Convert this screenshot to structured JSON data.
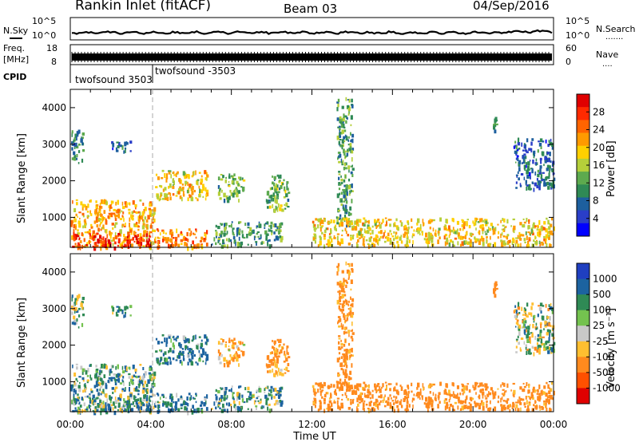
{
  "header": {
    "title": "Rankin Inlet (fitACF)",
    "beam": "Beam 03",
    "date": "04/Sep/2016"
  },
  "top_panels": {
    "nsky_label": "N.Sky",
    "nsearch_label": "N.Search",
    "noise_ticks": [
      "10^5",
      "10^0"
    ],
    "freq_label_1": "Freq.",
    "freq_label_2": "[MHz]",
    "freq_ticks": [
      "18",
      "8"
    ],
    "nave_label": "Nave",
    "nave_ticks": [
      "60",
      "0"
    ],
    "cpid_label": "CPID",
    "cpid_segments": [
      {
        "name": "twofsound 3503",
        "start_hour": 0
      },
      {
        "name": "twofsound -3503",
        "start_hour": 4
      }
    ]
  },
  "panels": {
    "power": {
      "ylabel": "Slant Range [km]",
      "cbar_label": "Power [dB]",
      "cbar_ticks": [
        "28",
        "24",
        "20",
        "16",
        "12",
        "8",
        "4"
      ],
      "cbar_colors": [
        "#e00000",
        "#ff2a00",
        "#ff6400",
        "#ff9a00",
        "#ffd000",
        "#b5cf3a",
        "#5daa4e",
        "#2f8a55",
        "#1d5f9e",
        "#2a3ec8",
        "#0000ff"
      ]
    },
    "velocity": {
      "ylabel": "Slant Range [km]",
      "cbar_label": "Velocity [m s⁻¹]",
      "cbar_ticks": [
        "1000",
        "500",
        "100",
        "25",
        "-25",
        "-100",
        "-500",
        "-1000"
      ],
      "cbar_colors": [
        "#1f3fc0",
        "#1c63a0",
        "#2f8a55",
        "#74c24f",
        "#c8c8c8",
        "#ffbf30",
        "#ff8a1e",
        "#ff5000",
        "#e00000"
      ]
    },
    "range_ticks": [
      "1000",
      "2000",
      "3000",
      "4000"
    ]
  },
  "time_axis": {
    "label": "Time UT",
    "ticks": [
      "00:00",
      "04:00",
      "08:00",
      "12:00",
      "16:00",
      "20:00",
      "00:00"
    ]
  },
  "chart_data": {
    "type": "heatmap",
    "title": "Rankin Inlet (fitACF)",
    "xlabel": "Time UT",
    "ylabel": "Slant Range [km]",
    "xlim_hours": [
      0,
      24
    ],
    "ylim_km": [
      180,
      4500
    ],
    "color_scales": {
      "power_db": [
        0,
        30
      ],
      "velocity_ms": [
        -1000,
        1000
      ]
    },
    "echo_regions": [
      {
        "start_hour": 0.0,
        "end_hour": 4.2,
        "range_min_km": 200,
        "range_max_km": 1500,
        "power_db": 20,
        "velocity_ms": 60
      },
      {
        "start_hour": 0.0,
        "end_hour": 4.0,
        "range_min_km": 200,
        "range_max_km": 600,
        "power_db": 28,
        "velocity_ms": 80
      },
      {
        "start_hour": 0.0,
        "end_hour": 0.6,
        "range_min_km": 2500,
        "range_max_km": 3400,
        "power_db": 8,
        "velocity_ms": 0
      },
      {
        "start_hour": 2.0,
        "end_hour": 3.0,
        "range_min_km": 2800,
        "range_max_km": 3100,
        "power_db": 6,
        "velocity_ms": 80
      },
      {
        "start_hour": 4.2,
        "end_hour": 6.8,
        "range_min_km": 1500,
        "range_max_km": 2300,
        "power_db": 18,
        "velocity_ms": 120
      },
      {
        "start_hour": 4.2,
        "end_hour": 6.8,
        "range_min_km": 200,
        "range_max_km": 700,
        "power_db": 22,
        "velocity_ms": 100
      },
      {
        "start_hour": 7.3,
        "end_hour": 8.6,
        "range_min_km": 1500,
        "range_max_km": 2200,
        "power_db": 12,
        "velocity_ms": -120
      },
      {
        "start_hour": 7.0,
        "end_hour": 10.5,
        "range_min_km": 250,
        "range_max_km": 900,
        "power_db": 10,
        "velocity_ms": 60
      },
      {
        "start_hour": 9.7,
        "end_hour": 10.8,
        "range_min_km": 1200,
        "range_max_km": 2200,
        "power_db": 12,
        "velocity_ms": -150
      },
      {
        "start_hour": 13.2,
        "end_hour": 14.0,
        "range_min_km": 800,
        "range_max_km": 4300,
        "power_db": 10,
        "velocity_ms": -200
      },
      {
        "start_hour": 12.0,
        "end_hour": 24.0,
        "range_min_km": 250,
        "range_max_km": 1000,
        "power_db": 18,
        "velocity_ms": -200
      },
      {
        "start_hour": 20.8,
        "end_hour": 21.2,
        "range_min_km": 3400,
        "range_max_km": 3800,
        "power_db": 8,
        "velocity_ms": -300
      },
      {
        "start_hour": 22.0,
        "end_hour": 24.0,
        "range_min_km": 1800,
        "range_max_km": 3200,
        "power_db": 6,
        "velocity_ms": 0
      }
    ]
  }
}
